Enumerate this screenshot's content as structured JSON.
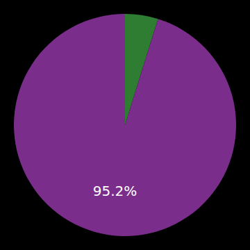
{
  "chart_data": {
    "type": "pie",
    "values": [
      4.8,
      95.2
    ],
    "value_labels": [
      null,
      "95.2%"
    ],
    "colors": [
      "#2e7d32",
      "#7b2d8b"
    ]
  }
}
